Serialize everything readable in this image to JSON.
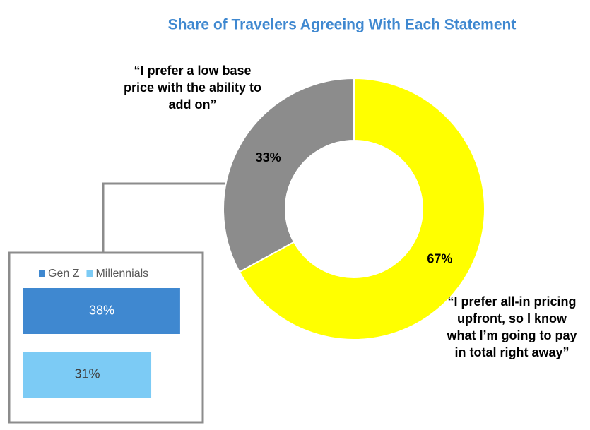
{
  "chart_data": [
    {
      "type": "donut",
      "title": "Share of Travelers Agreeing With Each Statement",
      "categories": [
        "“I prefer all-in pricing upfront, so I know what I’m going to pay in total right away”",
        "“I prefer a low base price with the ability to add on”"
      ],
      "values": [
        67,
        33
      ],
      "value_labels": [
        "67%",
        "33%"
      ],
      "colors": [
        "#ffff00",
        "#8c8c8c"
      ]
    },
    {
      "type": "bar",
      "orientation": "horizontal",
      "series": [
        {
          "name": "Gen Z",
          "color": "#3f88d0",
          "values": [
            38
          ],
          "value_labels": [
            "38%"
          ]
        },
        {
          "name": "Millennials",
          "color": "#7ccbf5",
          "values": [
            31
          ],
          "value_labels": [
            "31%"
          ]
        }
      ]
    }
  ]
}
